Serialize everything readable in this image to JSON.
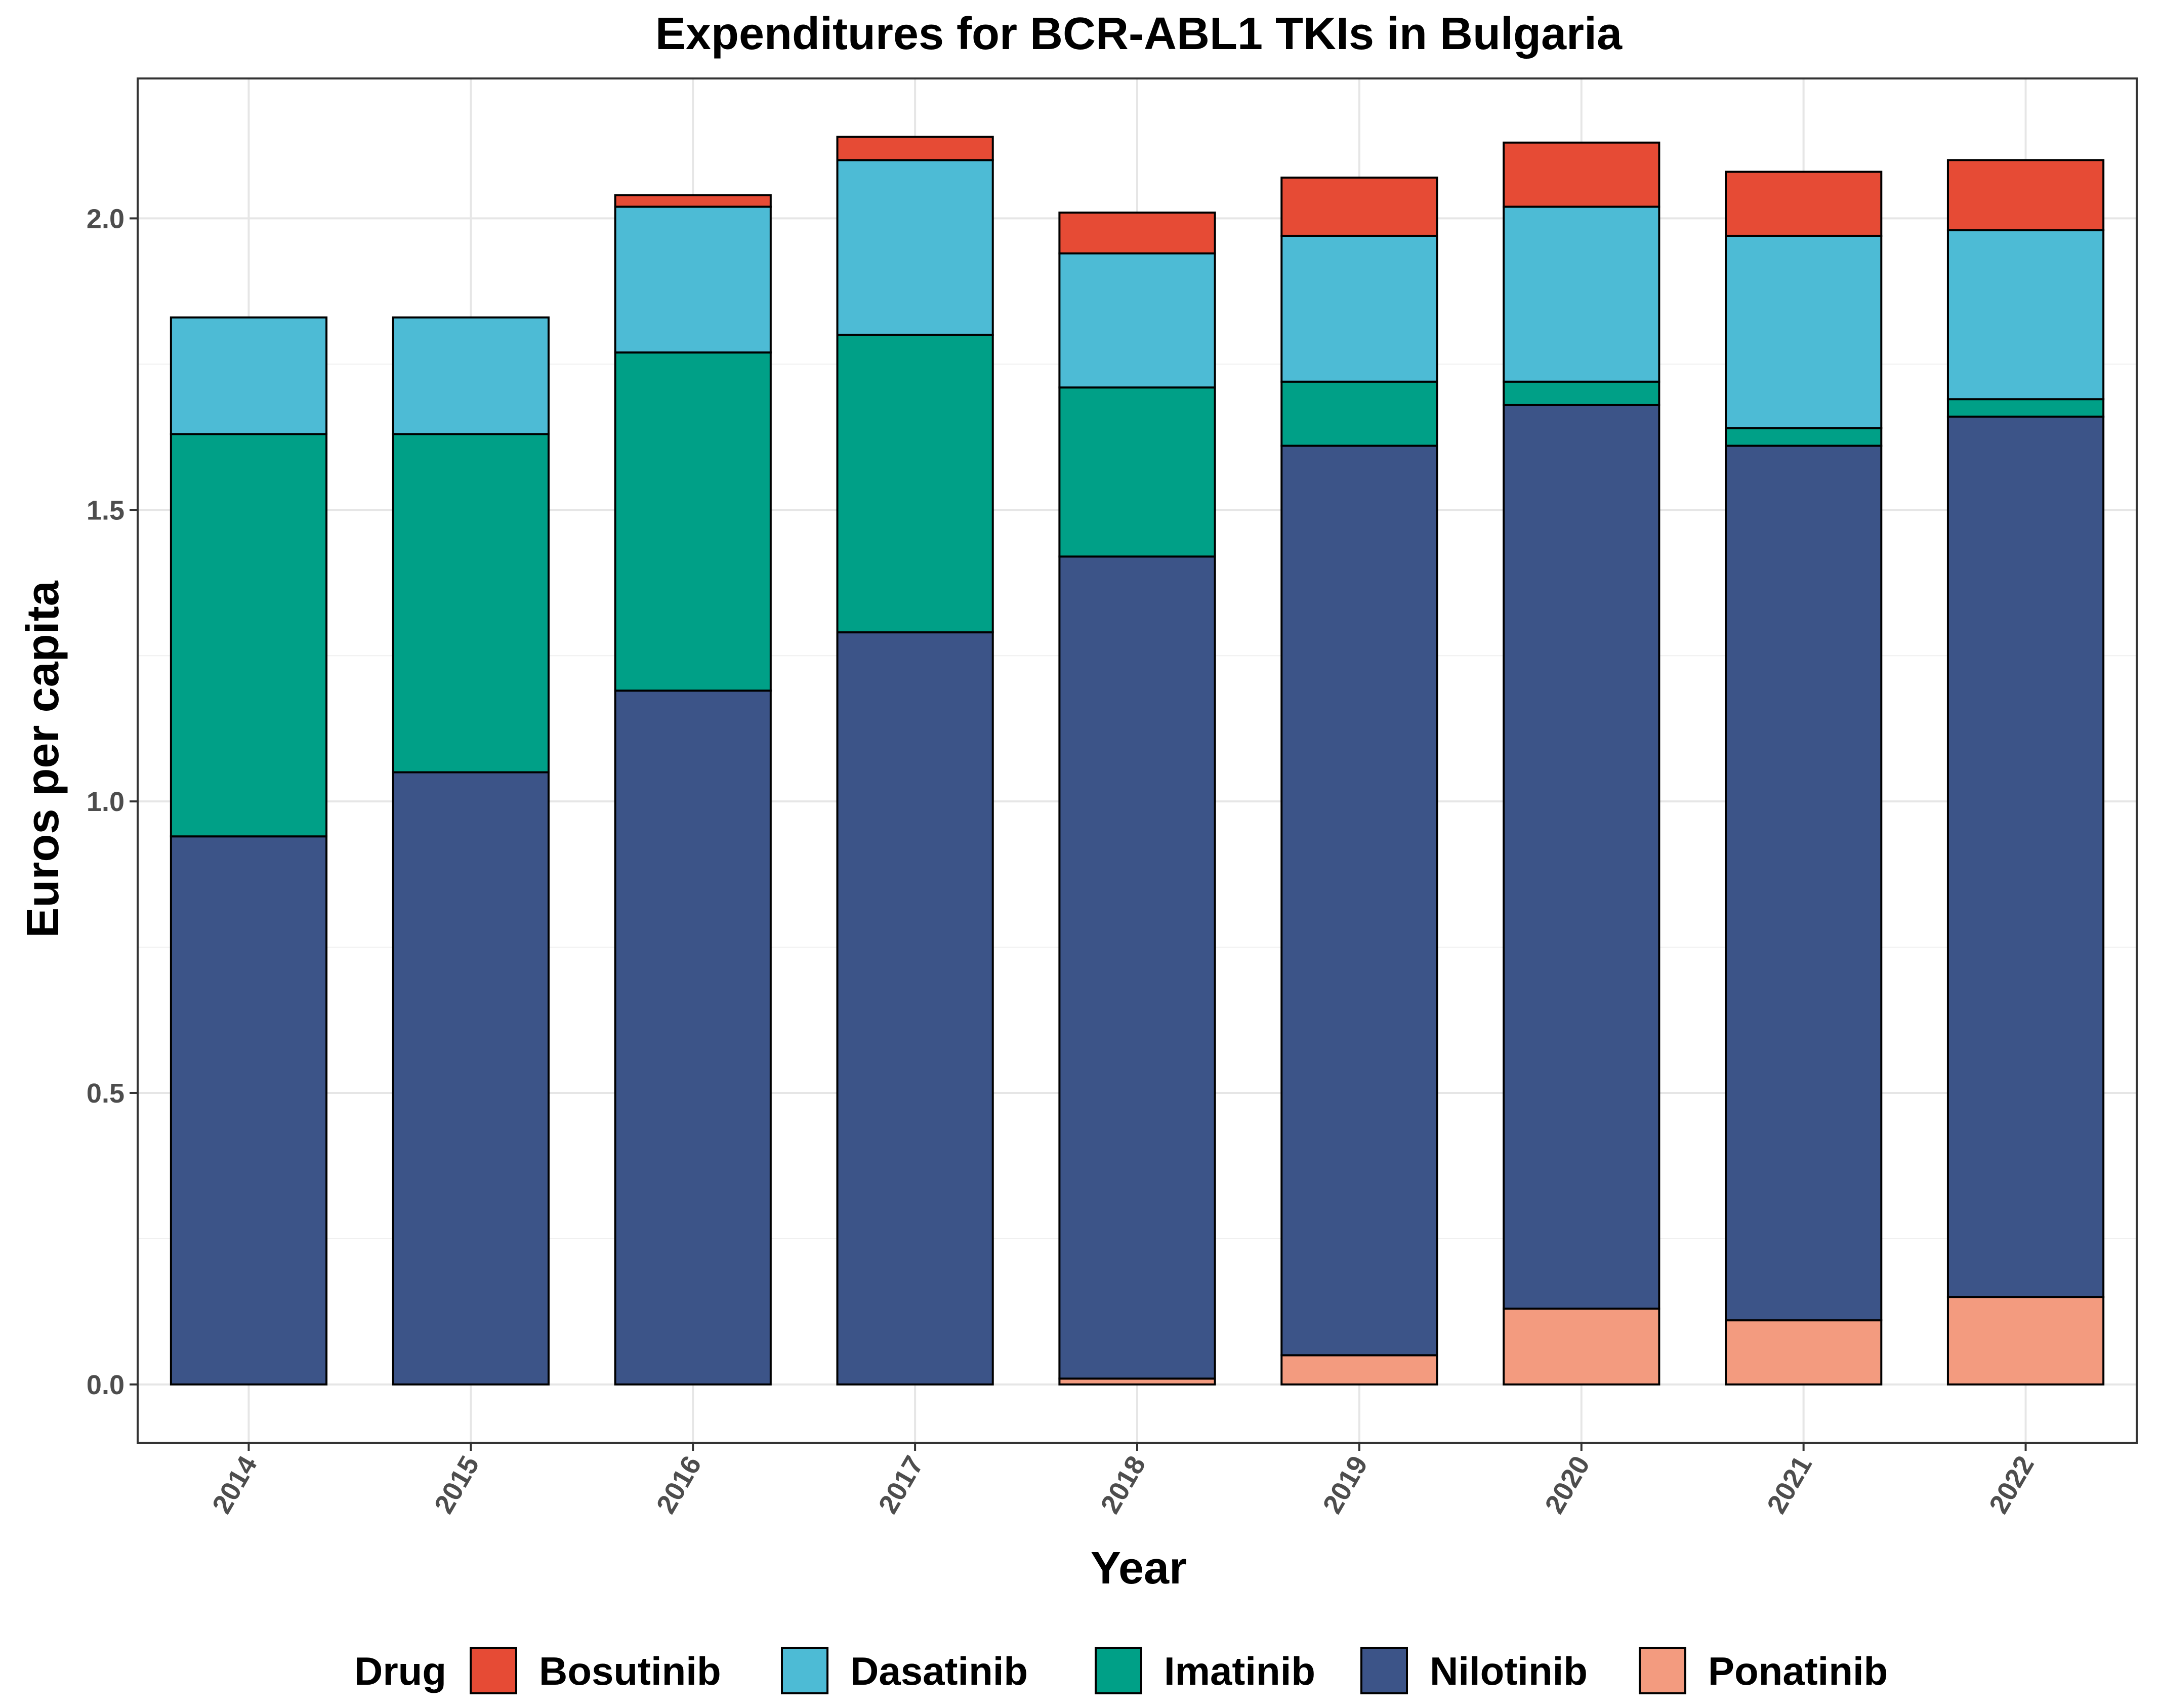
{
  "chart_data": {
    "type": "bar",
    "stacked": true,
    "title": "Expenditures for BCR-ABL1 TKIs in Bulgaria",
    "xlabel": "Year",
    "ylabel": "Euros per capita",
    "categories": [
      "2014",
      "2015",
      "2016",
      "2017",
      "2018",
      "2019",
      "2020",
      "2021",
      "2022"
    ],
    "ylim": [
      -0.1,
      2.24
    ],
    "yticks": [
      0.0,
      0.5,
      1.0,
      1.5,
      2.0
    ],
    "ytick_labels": [
      "0.0",
      "0.5",
      "1.0",
      "1.5",
      "2.0"
    ],
    "grid": true,
    "legend": {
      "title": "Drug",
      "placement": "bottom",
      "entries": [
        "Bosutinib",
        "Dasatinib",
        "Imatinib",
        "Nilotinib",
        "Ponatinib"
      ]
    },
    "stack_order_bottom_to_top": [
      "Ponatinib",
      "Nilotinib",
      "Imatinib",
      "Dasatinib",
      "Bosutinib"
    ],
    "series": [
      {
        "name": "Bosutinib",
        "color": "#E64B35",
        "values": [
          0.0,
          0.0,
          0.02,
          0.04,
          0.07,
          0.1,
          0.11,
          0.11,
          0.12
        ]
      },
      {
        "name": "Dasatinib",
        "color": "#4DBBD5",
        "values": [
          0.2,
          0.2,
          0.25,
          0.3,
          0.23,
          0.25,
          0.3,
          0.33,
          0.29
        ]
      },
      {
        "name": "Imatinib",
        "color": "#00A087",
        "values": [
          0.69,
          0.58,
          0.58,
          0.51,
          0.29,
          0.11,
          0.04,
          0.03,
          0.03
        ]
      },
      {
        "name": "Nilotinib",
        "color": "#3C5488",
        "values": [
          0.94,
          1.05,
          1.19,
          1.29,
          1.41,
          1.56,
          1.55,
          1.5,
          1.51
        ]
      },
      {
        "name": "Ponatinib",
        "color": "#F39B7F",
        "values": [
          0.0,
          0.0,
          0.0,
          0.0,
          0.01,
          0.05,
          0.13,
          0.11,
          0.15
        ]
      }
    ]
  }
}
